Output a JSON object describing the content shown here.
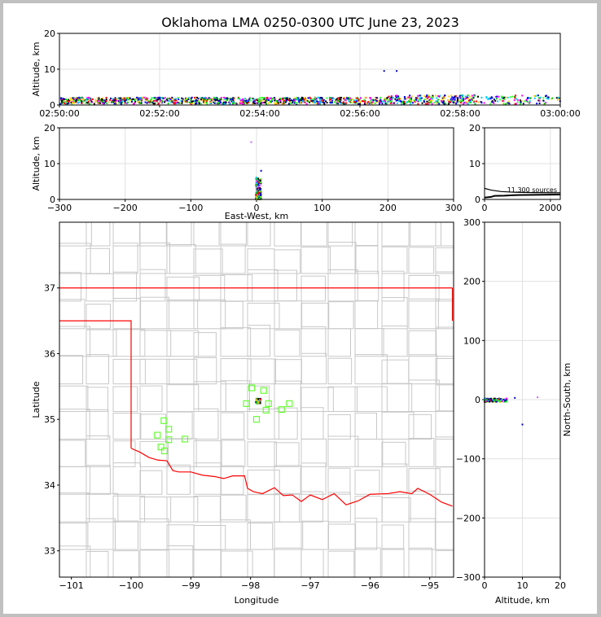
{
  "chart_data": {
    "title": "Oklahoma LMA 0250-0300 UTC June 23, 2023",
    "type": "scatter",
    "panels": {
      "time_altitude": {
        "ylabel": "Altitude, km",
        "xlim": [
          "02:50:00",
          "03:00:00"
        ],
        "ylim": [
          0,
          20
        ],
        "xticks": [
          "02:50:00",
          "02:52:00",
          "02:54:00",
          "02:56:00",
          "02:58:00",
          "03:00:00"
        ],
        "yticks": [
          "0",
          "10",
          "20"
        ],
        "grid": true,
        "high_points": [
          {
            "time": "02:56:28",
            "alt": 9.5,
            "color": "#0000cc"
          },
          {
            "time": "02:56:43",
            "alt": 9.5,
            "color": "#0000cc"
          }
        ]
      },
      "eastwest_altitude": {
        "xlabel": "East-West, km",
        "ylabel": "Altitude, km",
        "xlim": [
          -300,
          300
        ],
        "ylim": [
          0,
          20
        ],
        "xticks": [
          "−300",
          "−200",
          "−100",
          "0",
          "100",
          "200",
          "300"
        ],
        "yticks": [
          "0",
          "10",
          "20"
        ],
        "grid": true
      },
      "histogram": {
        "xlim": [
          0,
          2300
        ],
        "ylim": [
          0,
          20
        ],
        "xticks": [
          "0",
          "2000"
        ],
        "yticks": [
          "0",
          "10",
          "20"
        ],
        "annotation": "11,300 sources"
      },
      "plan_view": {
        "xlabel": "Longitude",
        "ylabel": "Latitude",
        "xlim": [
          -101.2,
          -94.6
        ],
        "ylim": [
          32.6,
          38.0
        ],
        "xticks": [
          "−101",
          "−100",
          "−99",
          "−98",
          "−97",
          "−96",
          "−95"
        ],
        "yticks": [
          "33",
          "34",
          "35",
          "36",
          "37"
        ],
        "stations": [
          {
            "lon": -97.98,
            "lat": 35.48
          },
          {
            "lon": -97.78,
            "lat": 35.44
          },
          {
            "lon": -98.07,
            "lat": 35.24
          },
          {
            "lon": -97.7,
            "lat": 35.24
          },
          {
            "lon": -97.35,
            "lat": 35.24
          },
          {
            "lon": -97.48,
            "lat": 35.15
          },
          {
            "lon": -97.74,
            "lat": 35.14
          },
          {
            "lon": -97.9,
            "lat": 35.0
          },
          {
            "lon": -99.45,
            "lat": 34.98
          },
          {
            "lon": -99.37,
            "lat": 34.85
          },
          {
            "lon": -99.56,
            "lat": 34.76
          },
          {
            "lon": -99.37,
            "lat": 34.69
          },
          {
            "lon": -99.1,
            "lat": 34.7
          },
          {
            "lon": -99.5,
            "lat": 34.58
          },
          {
            "lon": -99.44,
            "lat": 34.52
          }
        ],
        "source_center": {
          "lon": -97.87,
          "lat": 35.28
        }
      },
      "altitude_northsouth": {
        "xlabel": "Altitude, km",
        "ylabel": "North-South, km",
        "xlim": [
          0,
          20
        ],
        "ylim": [
          -300,
          300
        ],
        "xticks": [
          "0",
          "10",
          "20"
        ],
        "yticks": [
          "−300",
          "−200",
          "−100",
          "0",
          "100",
          "200",
          "300"
        ]
      }
    }
  },
  "colors": {
    "background": "#c0c0c0",
    "state_border": "#ff0000",
    "county": "#c8c8c8",
    "station": "#66ff33"
  }
}
